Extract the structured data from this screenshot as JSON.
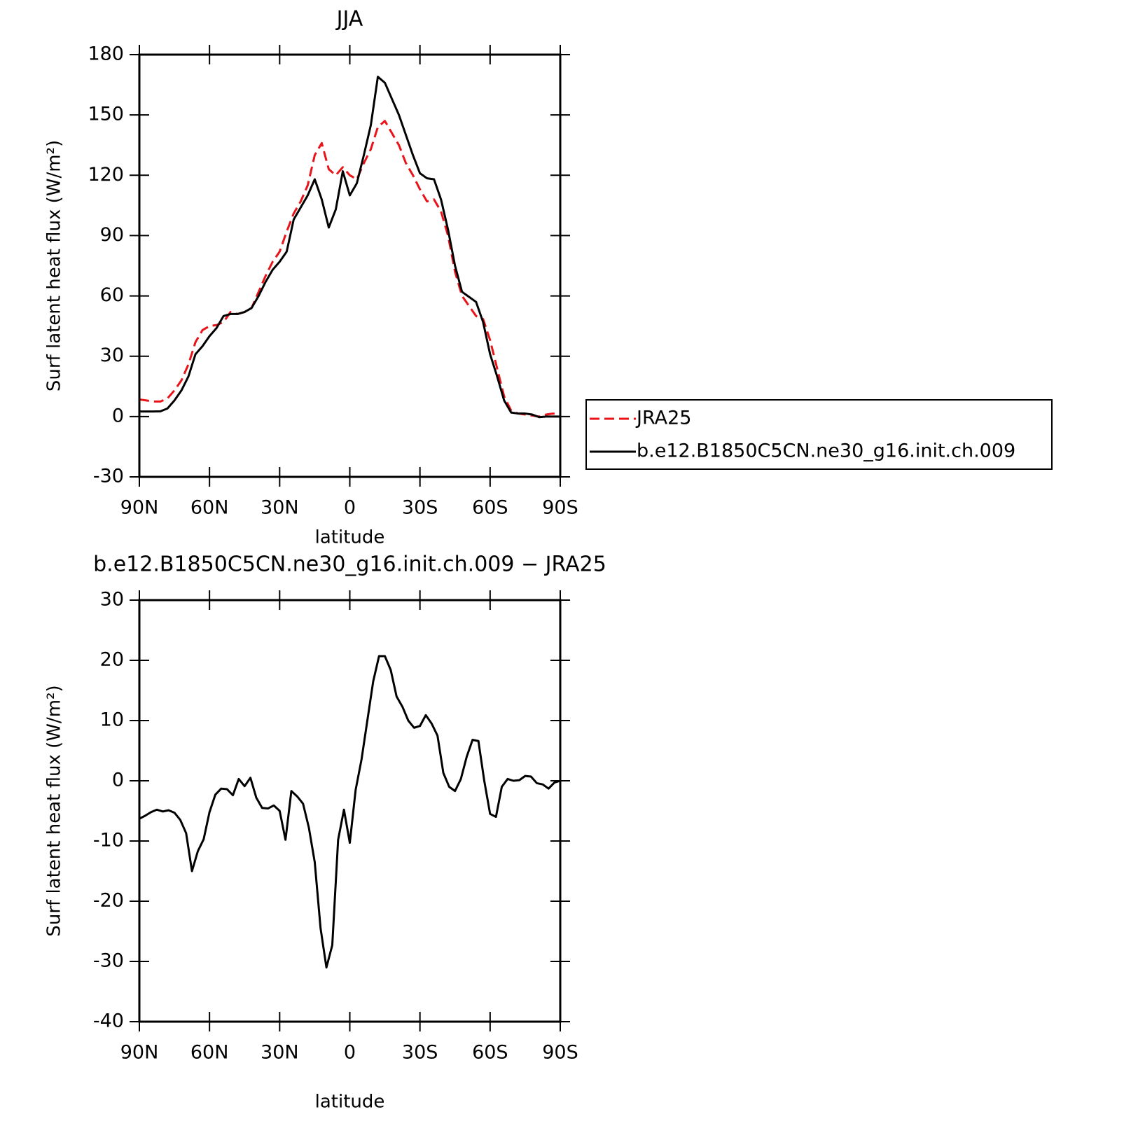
{
  "chart_data": [
    {
      "type": "line",
      "title": "JJA",
      "x_label": "latitude",
      "y_label": "Surf latent heat flux (W/m²)",
      "x": [
        90,
        87,
        84,
        81,
        78,
        75,
        72,
        69,
        66,
        63,
        60,
        57,
        54,
        51,
        48,
        45,
        42,
        39,
        36,
        33,
        30,
        27,
        24,
        21,
        18,
        15,
        12,
        9,
        6,
        3,
        0,
        -3,
        -6,
        -9,
        -12,
        -15,
        -18,
        -21,
        -24,
        -27,
        -30,
        -33,
        -36,
        -39,
        -42,
        -45,
        -48,
        -51,
        -54,
        -57,
        -60,
        -63,
        -66,
        -69,
        -72,
        -75,
        -78,
        -81,
        -84,
        -87,
        -90
      ],
      "series": [
        {
          "name": "JRA25",
          "color": "#e8141a",
          "dashed": true,
          "values": [
            8.5,
            8,
            7.5,
            7.5,
            9,
            13,
            18,
            26,
            37,
            43,
            45,
            45.5,
            47,
            52,
            51,
            52,
            54,
            62,
            70,
            77,
            82,
            92,
            101,
            107,
            115,
            130,
            136,
            123,
            120,
            124,
            120,
            118,
            126,
            133,
            144,
            147,
            141,
            135,
            126,
            120,
            113,
            107,
            108,
            102,
            90,
            72,
            60,
            55,
            50,
            48.5,
            38,
            24,
            10,
            3,
            1.5,
            1,
            0.5,
            0,
            1,
            1.5,
            0.5
          ]
        },
        {
          "name": "b.e12.B1850C5CN.ne30_g16.init.ch.009",
          "color": "#000000",
          "dashed": false,
          "values": [
            2.5,
            2.5,
            2.5,
            2.6,
            4,
            8,
            13,
            20,
            31,
            35,
            40,
            44,
            50,
            51,
            51,
            52,
            54,
            60,
            67,
            73,
            77,
            82,
            98,
            104,
            110,
            118,
            108,
            94,
            103,
            122,
            110,
            116,
            130,
            145,
            169,
            166,
            158,
            150,
            140,
            130,
            121,
            118.5,
            118,
            108,
            93,
            75,
            62,
            59.5,
            57,
            47,
            31,
            20,
            8,
            2,
            1.5,
            1.5,
            1,
            -0.3,
            0,
            0,
            0
          ]
        }
      ],
      "xlim": [
        90,
        -90
      ],
      "xticks": [
        {
          "value": 90,
          "label": "90N"
        },
        {
          "value": 60,
          "label": "60N"
        },
        {
          "value": 30,
          "label": "30N"
        },
        0,
        {
          "value": -30,
          "label": "30S"
        },
        {
          "value": -60,
          "label": "60S"
        },
        {
          "value": -90,
          "label": "90S"
        }
      ],
      "ylim": [
        -30,
        180
      ],
      "yticks": [
        -30,
        0,
        30,
        60,
        90,
        120,
        150,
        180
      ],
      "legend": true,
      "legend_position": "right"
    },
    {
      "type": "line",
      "title": "b.e12.B1850C5CN.ne30_g16.init.ch.009 − JRA25",
      "x_label": "latitude",
      "y_label": "Surf latent heat flux (W/m²)",
      "x": [
        90,
        87.5,
        85,
        82.5,
        80,
        77.5,
        75,
        72.5,
        70,
        67.5,
        65,
        62.5,
        60,
        57.5,
        55,
        52.5,
        50,
        47.5,
        45,
        42.5,
        40,
        37.5,
        35,
        32.5,
        30,
        27.5,
        25,
        22.5,
        20,
        17.5,
        15,
        12.5,
        10,
        7.5,
        5,
        2.5,
        0,
        -2.5,
        -5,
        -7.5,
        -10,
        -12.5,
        -15,
        -17.5,
        -20,
        -22.5,
        -25,
        -27.5,
        -30,
        -32.5,
        -35,
        -37.5,
        -40,
        -42.5,
        -45,
        -47.5,
        -50,
        -52.5,
        -55,
        -57.5,
        -60,
        -62.5,
        -65,
        -67.5,
        -70,
        -72.5,
        -75,
        -77.5,
        -80,
        -82.5,
        -85,
        -87.5,
        -90
      ],
      "values": [
        -6.3,
        -5.8,
        -5.2,
        -4.8,
        -5.1,
        -4.9,
        -5.3,
        -6.5,
        -8.7,
        -15,
        -11.7,
        -9.7,
        -5.2,
        -2.3,
        -1.3,
        -1.4,
        -2.4,
        0.3,
        -0.9,
        0.5,
        -2.8,
        -4.5,
        -4.6,
        -4.1,
        -5,
        -9.8,
        -1.7,
        -2.6,
        -3.8,
        -7.8,
        -13.5,
        -24.5,
        -31,
        -27.3,
        -9.8,
        -4.8,
        -10.3,
        -1.5,
        3.5,
        10,
        16.5,
        20.7,
        20.7,
        18.4,
        14,
        12.3,
        10,
        8.8,
        9.1,
        10.9,
        9.5,
        7.5,
        1.3,
        -1,
        -1.7,
        0.3,
        4,
        6.8,
        6.6,
        0,
        -5.5,
        -6,
        -1,
        0.3,
        0,
        0.1,
        0.8,
        0.7,
        -0.4,
        -0.6,
        -1.3,
        -0.3,
        0
      ],
      "color": "#000000",
      "xlim": [
        90,
        -90
      ],
      "xticks": [
        {
          "value": 90,
          "label": "90N"
        },
        {
          "value": 60,
          "label": "60N"
        },
        {
          "value": 30,
          "label": "30N"
        },
        0,
        {
          "value": -30,
          "label": "30S"
        },
        {
          "value": -60,
          "label": "60S"
        },
        {
          "value": -90,
          "label": "90S"
        }
      ],
      "ylim": [
        -40,
        30
      ],
      "yticks": [
        -40,
        -30,
        -20,
        -10,
        0,
        10,
        20,
        30
      ]
    }
  ]
}
